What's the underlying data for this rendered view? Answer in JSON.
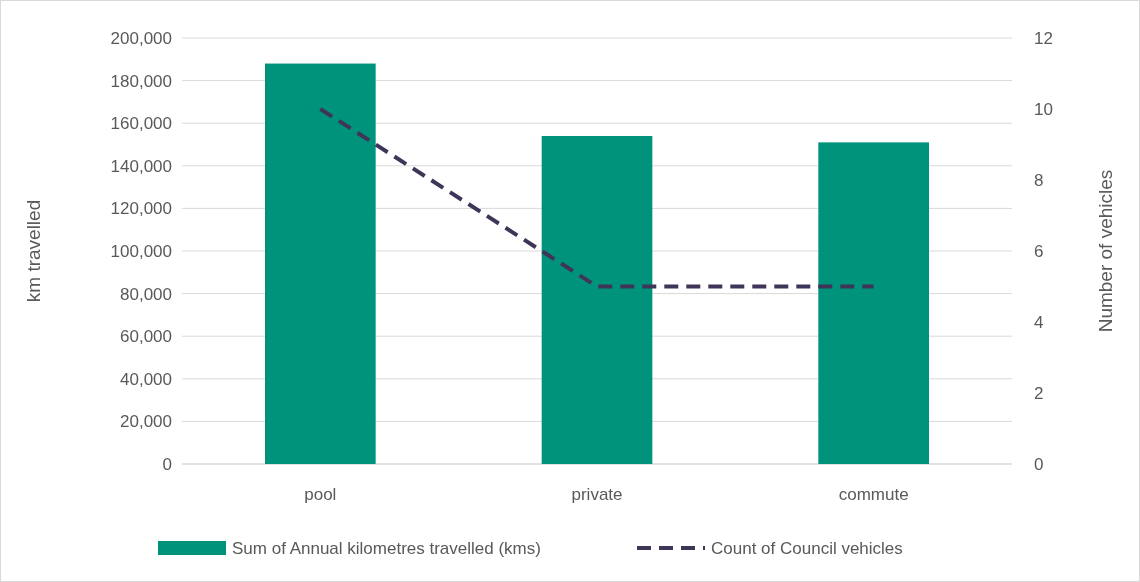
{
  "chart_data": {
    "type": "bar",
    "categories": [
      "pool",
      "private",
      "commute"
    ],
    "series": [
      {
        "name": "Sum of Annual kilometres travelled (kms)",
        "color": "#00937b",
        "values": [
          188000,
          154000,
          151000
        ]
      },
      {
        "name": "Count of Council vehicles",
        "type": "line",
        "axis": "y2",
        "color": "#3f3558",
        "line_style": "dashed",
        "values": [
          10,
          5,
          5
        ]
      }
    ],
    "ylabel": "km travelled",
    "y2label": "Number of vehicles",
    "ylim": [
      0,
      200000
    ],
    "yticks": [
      {
        "value": 0,
        "label": "0"
      },
      {
        "value": 20000,
        "label": "20,000"
      },
      {
        "value": 40000,
        "label": "40,000"
      },
      {
        "value": 60000,
        "label": "60,000"
      },
      {
        "value": 80000,
        "label": "80,000"
      },
      {
        "value": 100000,
        "label": "100,000"
      },
      {
        "value": 120000,
        "label": "120,000"
      },
      {
        "value": 140000,
        "label": "140,000"
      },
      {
        "value": 160000,
        "label": "160,000"
      },
      {
        "value": 180000,
        "label": "180,000"
      },
      {
        "value": 200000,
        "label": "200,000"
      }
    ],
    "y2lim": [
      0,
      12
    ],
    "y2ticks": [
      0,
      2,
      4,
      6,
      8,
      10,
      12
    ],
    "grid": "y",
    "legend": "bottom"
  }
}
